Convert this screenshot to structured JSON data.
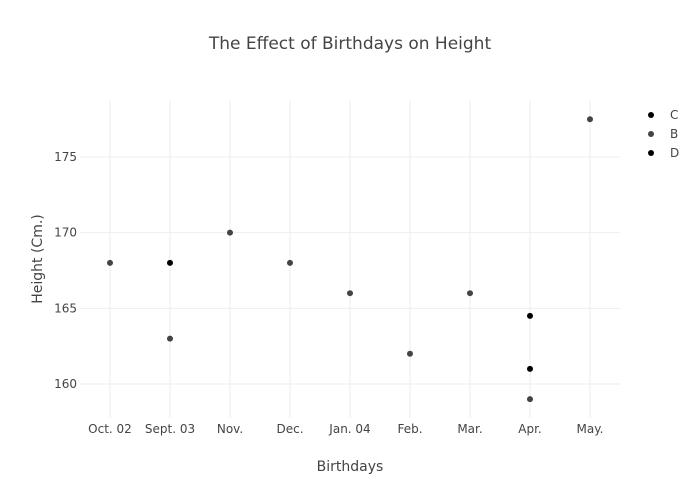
{
  "chart_data": {
    "type": "scatter",
    "title": "The Effect of Birthdays on Height",
    "xlabel": "Birthdays",
    "ylabel": "Height (Cm.)",
    "categories": [
      "Oct. 02",
      "Sept. 03",
      "Nov.",
      "Dec.",
      "Jan. 04",
      "Feb.",
      "Mar.",
      "Apr.",
      "May."
    ],
    "ylim": [
      157.75,
      178.77
    ],
    "yticks": [
      160,
      165,
      170,
      175
    ],
    "grid": true,
    "legend": "top-right",
    "series": [
      {
        "name": "C",
        "color": "#000000",
        "points": [
          {
            "x": "Sept. 03",
            "y": 168
          },
          {
            "x": "Apr.",
            "y": 164.5
          }
        ]
      },
      {
        "name": "B",
        "color": "#444444",
        "points": [
          {
            "x": "Oct. 02",
            "y": 168
          },
          {
            "x": "Sept. 03",
            "y": 163
          },
          {
            "x": "Nov.",
            "y": 170
          },
          {
            "x": "Dec.",
            "y": 168
          },
          {
            "x": "Jan. 04",
            "y": 166
          },
          {
            "x": "Feb.",
            "y": 162
          },
          {
            "x": "Mar.",
            "y": 166
          },
          {
            "x": "Apr.",
            "y": 159
          },
          {
            "x": "May.",
            "y": 177.5
          }
        ]
      },
      {
        "name": "D",
        "color": "#000000",
        "points": [
          {
            "x": "Apr.",
            "y": 161
          }
        ]
      }
    ]
  }
}
